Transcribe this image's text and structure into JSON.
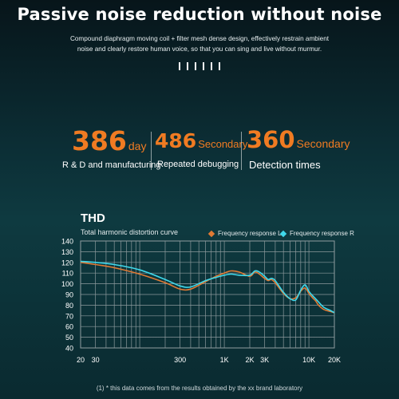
{
  "header": {
    "title": "Passive noise reduction without noise",
    "subtitle_lines": [
      "Compound diaphragm moving coil + filter mesh dense design, effectively restrain ambient",
      "noise and clearly restore human voice, so that you can sing and live without murmur."
    ]
  },
  "stats": [
    {
      "value": "386",
      "unit": "day",
      "caption": "R & D and manufacturing"
    },
    {
      "value": "486",
      "unit": "Secondary",
      "caption": "Repeated debugging"
    },
    {
      "value": "360",
      "unit": "Secondary",
      "caption": "Detection times"
    }
  ],
  "colors": {
    "accent": "#f07b22",
    "series_l": "#e07a34",
    "series_r": "#3fd8ea"
  },
  "chart_data": {
    "type": "line",
    "title": "THD",
    "subtitle": "Total harmonic distortion curve",
    "xscale": "log",
    "xlim": [
      20,
      20000
    ],
    "ylim": [
      40,
      140
    ],
    "x_ticks": [
      20,
      30,
      100,
      200,
      300,
      1000,
      2000,
      3000,
      10000,
      20000
    ],
    "x_tick_labels": [
      "20",
      "30",
      "",
      "",
      "300",
      "1K",
      "2K",
      "3K",
      "10K",
      "20K"
    ],
    "y_ticks": [
      40,
      50,
      60,
      70,
      80,
      90,
      100,
      110,
      120,
      130,
      140
    ],
    "grid": true,
    "legend_position": "top-right",
    "series": [
      {
        "name": "Frequency response L",
        "x": [
          20,
          30,
          50,
          100,
          200,
          300,
          400,
          600,
          800,
          1000,
          1200,
          1500,
          2000,
          2300,
          2600,
          3000,
          3300,
          3600,
          4000,
          5000,
          6000,
          7000,
          8000,
          9000,
          10000,
          11000,
          12000,
          13000,
          15000,
          18000,
          20000
        ],
        "y": [
          120,
          118,
          115,
          109,
          101,
          95,
          95,
          102,
          107,
          110,
          112,
          111,
          107,
          111,
          109,
          105,
          103,
          104,
          101,
          91,
          86,
          87,
          93,
          96,
          91,
          87,
          84,
          80,
          76,
          74,
          73
        ]
      },
      {
        "name": "Frequency response R",
        "x": [
          20,
          30,
          50,
          100,
          200,
          300,
          400,
          600,
          800,
          1000,
          1200,
          1500,
          2000,
          2300,
          2600,
          3000,
          3300,
          3600,
          4000,
          5000,
          6000,
          7000,
          8000,
          9000,
          10000,
          11000,
          12000,
          13000,
          15000,
          18000,
          20000
        ],
        "y": [
          121,
          120,
          118,
          113,
          104,
          98,
          97,
          103,
          106,
          108,
          109,
          108,
          108,
          112,
          111,
          107,
          104,
          105,
          103,
          92,
          86,
          85,
          94,
          99,
          93,
          89,
          86,
          83,
          78,
          75,
          73
        ]
      }
    ]
  },
  "footnote": "(1) * this data comes from the results obtained by the xx brand laboratory"
}
